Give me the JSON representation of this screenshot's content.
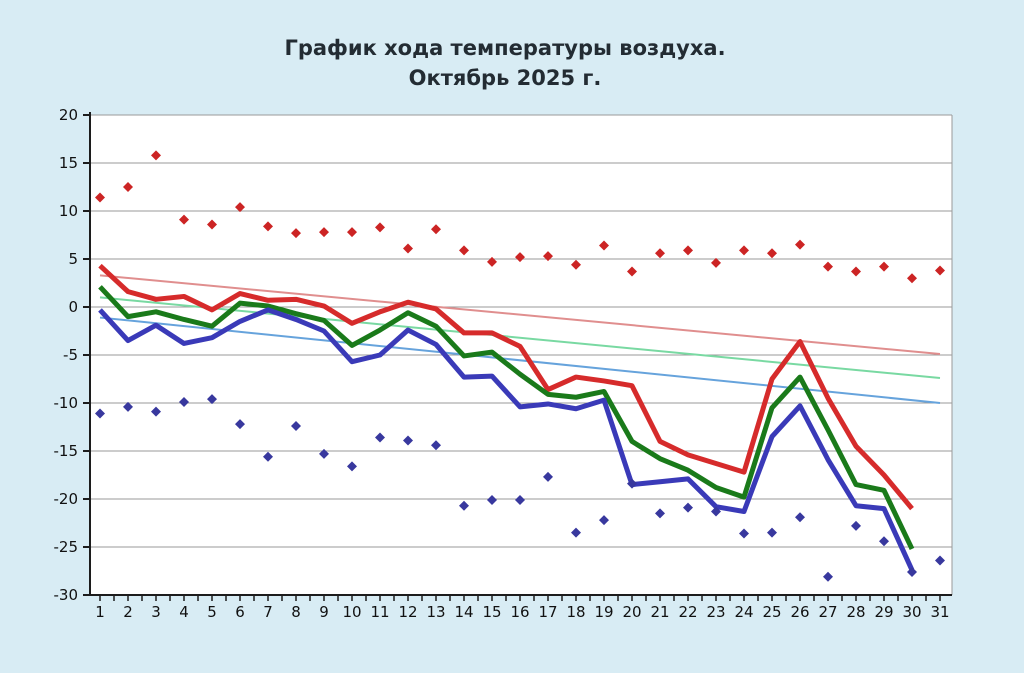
{
  "title": {
    "line1": "График хода температуры воздуха.",
    "line2": "Октябрь 2025 г."
  },
  "axes": {
    "y_tick_labels": [
      "20",
      "15",
      "10",
      "5",
      "0",
      "-5",
      "-10",
      "-15",
      "-20",
      "-25",
      "-30"
    ],
    "x_tick_labels": [
      "1",
      "2",
      "3",
      "4",
      "5",
      "6",
      "7",
      "8",
      "9",
      "10",
      "11",
      "12",
      "13",
      "14",
      "15",
      "16",
      "17",
      "18",
      "19",
      "20",
      "21",
      "22",
      "23",
      "24",
      "25",
      "26",
      "27",
      "28",
      "29",
      "30",
      "31"
    ]
  },
  "colors": {
    "background": "#d8ecf4",
    "plot_background": "#ffffff",
    "gridline": "#9a9a9a",
    "axis": "#1c1c1c",
    "tick_label": "#111111",
    "red_line": "#d62b2b",
    "green_line": "#1a7a1a",
    "blue_line": "#3a3ab8",
    "red_points": "#cc2424",
    "blue_points": "#38389e",
    "trend_pink": "#e08e8e",
    "trend_mint": "#79d9a2",
    "trend_lightblue": "#66a3dc"
  },
  "chart_data": {
    "type": "line",
    "title": "График хода температуры воздуха. Октябрь 2025 г.",
    "xlabel": "",
    "ylabel": "",
    "x_days": [
      1,
      2,
      3,
      4,
      5,
      6,
      7,
      8,
      9,
      10,
      11,
      12,
      13,
      14,
      15,
      16,
      17,
      18,
      19,
      20,
      21,
      22,
      23,
      24,
      25,
      26,
      27,
      28,
      29,
      30,
      31
    ],
    "ylim": [
      -30,
      20
    ],
    "ytick_step": 5,
    "grid": true,
    "legend_position": "none",
    "series": [
      {
        "id": "red-points",
        "style": "points",
        "marker": "diamond",
        "color_key": "red_points",
        "values": [
          11.4,
          12.5,
          15.8,
          9.1,
          8.6,
          10.4,
          8.4,
          7.7,
          7.8,
          7.8,
          8.3,
          6.1,
          8.1,
          5.9,
          4.7,
          5.2,
          5.3,
          4.4,
          6.4,
          3.7,
          5.6,
          5.9,
          4.6,
          5.9,
          5.6,
          6.5,
          4.2,
          3.7,
          4.2,
          3.0,
          3.8
        ]
      },
      {
        "id": "blue-points",
        "style": "points",
        "marker": "diamond",
        "color_key": "blue_points",
        "values": [
          -11.1,
          -10.4,
          -10.9,
          -9.9,
          -9.6,
          -12.2,
          -15.6,
          -12.4,
          -15.3,
          -16.6,
          -13.6,
          -13.9,
          -14.4,
          -20.7,
          -20.1,
          -20.1,
          -17.7,
          -23.5,
          -22.2,
          -18.4,
          -21.5,
          -20.9,
          -21.3,
          -23.6,
          -23.5,
          -21.9,
          -28.1,
          -22.8,
          -24.4,
          -27.6,
          -26.4
        ]
      },
      {
        "id": "red-line",
        "style": "line",
        "color_key": "red_line",
        "stroke_width": 5,
        "values": [
          4.3,
          1.6,
          0.8,
          1.1,
          -0.3,
          1.4,
          0.7,
          0.8,
          0.1,
          -1.7,
          -0.5,
          0.5,
          -0.2,
          -2.7,
          -2.7,
          -4.1,
          -8.6,
          -7.3,
          -7.7,
          -8.2,
          -14.0,
          -15.4,
          -16.3,
          -17.2,
          -7.5,
          -3.6,
          -9.5,
          -14.5,
          -17.5,
          -21.0,
          null
        ]
      },
      {
        "id": "green-line",
        "style": "line",
        "color_key": "green_line",
        "stroke_width": 5,
        "values": [
          2.1,
          -1.0,
          -0.5,
          -1.3,
          -2.0,
          0.4,
          0.1,
          -0.7,
          -1.4,
          -4.0,
          -2.4,
          -0.6,
          -2.0,
          -5.1,
          -4.7,
          -7.0,
          -9.1,
          -9.4,
          -8.8,
          -14.0,
          -15.8,
          -17.0,
          -18.8,
          -19.8,
          -10.5,
          -7.3,
          -12.8,
          -18.5,
          -19.1,
          -25.2,
          null
        ]
      },
      {
        "id": "blue-line",
        "style": "line",
        "color_key": "blue_line",
        "stroke_width": 5,
        "values": [
          -0.3,
          -3.5,
          -1.9,
          -3.8,
          -3.2,
          -1.5,
          -0.3,
          -1.3,
          -2.5,
          -5.7,
          -5.0,
          -2.4,
          -3.9,
          -7.3,
          -7.2,
          -10.4,
          -10.1,
          -10.6,
          -9.7,
          -18.5,
          -18.2,
          -17.9,
          -20.8,
          -21.3,
          -13.5,
          -10.3,
          -15.9,
          -20.7,
          -21.0,
          -27.4,
          null
        ]
      }
    ],
    "trend_lines": [
      {
        "id": "trend-pink",
        "color_key": "trend_pink",
        "start_day": 1,
        "end_day": 31,
        "start_value": 3.3,
        "end_value": -4.9
      },
      {
        "id": "trend-mint",
        "color_key": "trend_mint",
        "start_day": 1,
        "end_day": 31,
        "start_value": 1.0,
        "end_value": -7.4
      },
      {
        "id": "trend-lightblue",
        "color_key": "trend_lightblue",
        "start_day": 1,
        "end_day": 31,
        "start_value": -1.1,
        "end_value": -10.0
      }
    ]
  }
}
